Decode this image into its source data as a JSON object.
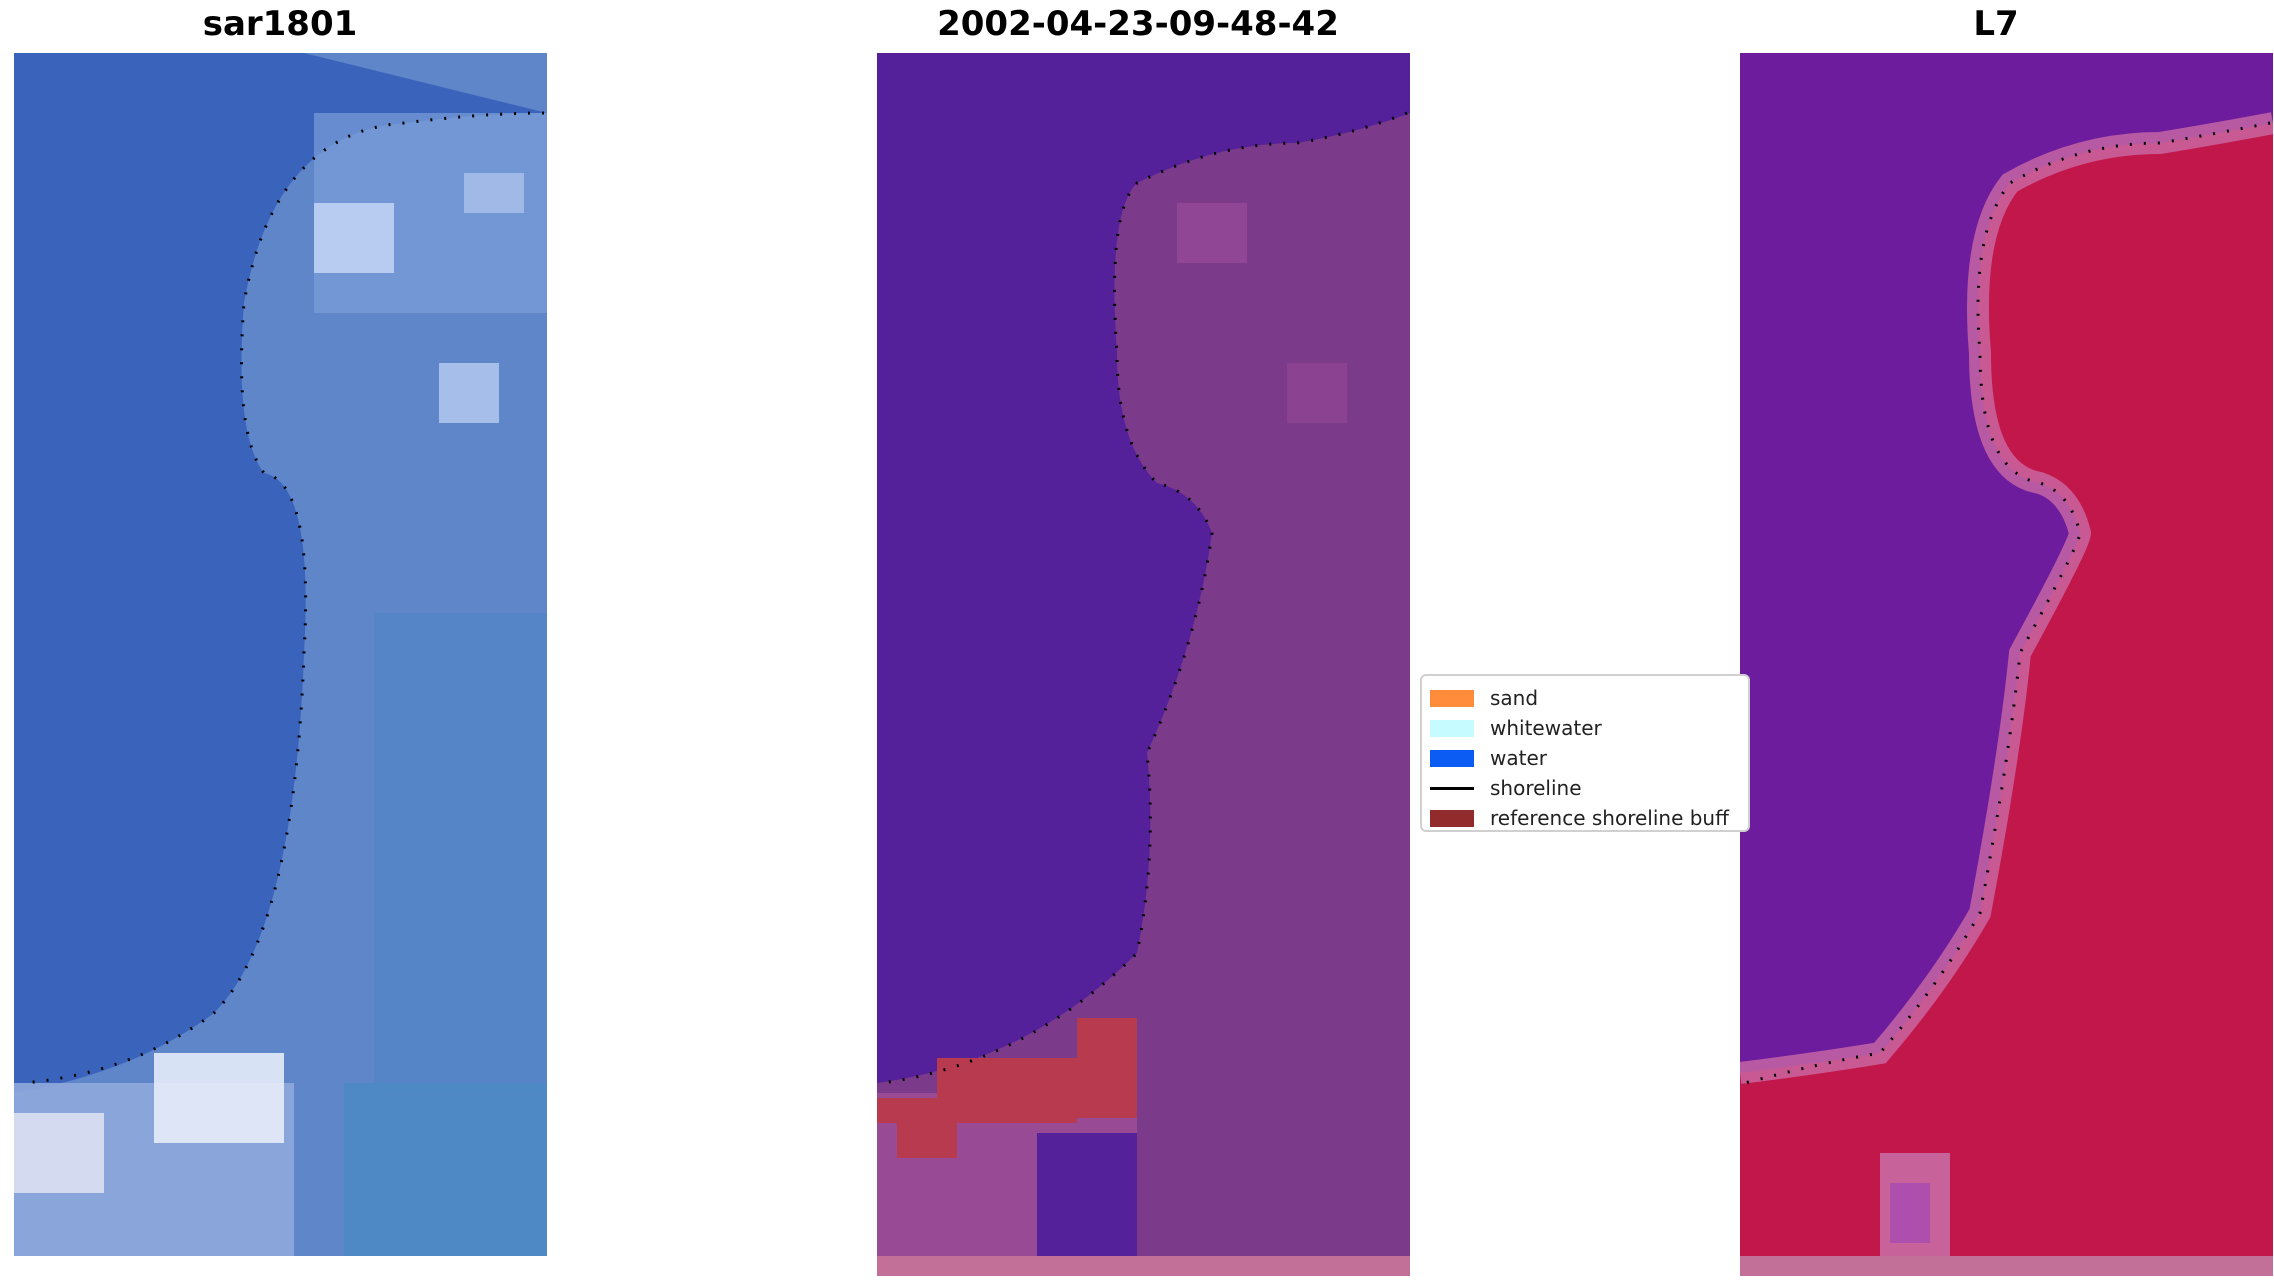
{
  "panels": [
    {
      "title": "sar1801"
    },
    {
      "title": "2002-04-23-09-48-42"
    },
    {
      "title": "L7"
    }
  ],
  "legend": {
    "items": [
      {
        "label": "sand",
        "color": "#ff8c3a",
        "kind": "patch"
      },
      {
        "label": "whitewater",
        "color": "#c6fbff",
        "kind": "patch"
      },
      {
        "label": "water",
        "color": "#0a5cf2",
        "kind": "patch"
      },
      {
        "label": "shoreline",
        "color": "#000000",
        "kind": "line"
      },
      {
        "label": "reference shoreline buff",
        "color": "#922c2c",
        "kind": "patch"
      }
    ]
  },
  "colors": {
    "rgb_water": "#3a63bb",
    "rgb_land": "#6a90d0",
    "rgb_bright": "#c8d8f5",
    "class_water": "#55219a",
    "class_land": "#7c3a8a",
    "class_buffer": "#b73a4e",
    "mndwi_water": "#6e1c9e",
    "mndwi_land": "#c11240",
    "strip": "#c27098"
  }
}
